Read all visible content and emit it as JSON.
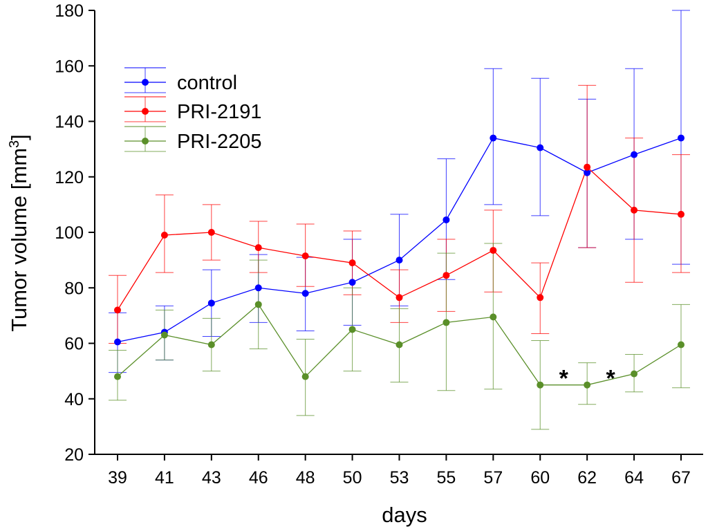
{
  "chart_data": {
    "type": "line",
    "title": "",
    "xlabel": "days",
    "ylabel_main": "Tumor volume [mm",
    "ylabel_sup": "3",
    "ylabel_end": "]",
    "ylim": [
      20,
      180
    ],
    "yticks": [
      20,
      40,
      60,
      80,
      100,
      120,
      140,
      160,
      180
    ],
    "categories": [
      "39",
      "41",
      "43",
      "46",
      "48",
      "50",
      "53",
      "55",
      "57",
      "60",
      "62",
      "64",
      "67"
    ],
    "legend_position": "top-left",
    "series": [
      {
        "name": "control",
        "color": "#0000ff",
        "values": [
          60.5,
          64,
          74.5,
          80,
          78,
          82,
          90,
          104.5,
          134,
          130.5,
          121.5,
          128,
          134
        ],
        "err_low": [
          49.5,
          54,
          62.5,
          67.5,
          64.5,
          66.5,
          73.5,
          83,
          110,
          106,
          94.5,
          97.5,
          88.5
        ],
        "err_high": [
          71,
          73.5,
          86.5,
          92,
          91,
          97.5,
          106.5,
          126.5,
          159,
          155.5,
          148,
          159,
          180
        ]
      },
      {
        "name": "PRI-2191",
        "color": "#ff0000",
        "values": [
          72,
          99,
          100,
          94.5,
          91.5,
          89,
          76.5,
          84.5,
          93.5,
          76.5,
          123.5,
          108,
          106.5
        ],
        "err_low": [
          60,
          85.5,
          90,
          85.5,
          80.5,
          77.5,
          67.5,
          71.5,
          78.5,
          63.5,
          94.5,
          82,
          85.5
        ],
        "err_high": [
          84.5,
          113.5,
          110,
          104,
          103,
          100.5,
          86.5,
          97.5,
          108,
          89,
          153,
          134,
          128
        ]
      },
      {
        "name": "PRI-2205",
        "color": "#5a8f29",
        "values": [
          48,
          63,
          59.5,
          74,
          48,
          65,
          59.5,
          67.5,
          69.5,
          45,
          45,
          49,
          59.5
        ],
        "err_low": [
          39.5,
          54,
          50,
          58,
          34,
          50,
          46,
          43,
          43.5,
          29,
          38,
          42.5,
          44
        ],
        "err_high": [
          57.5,
          72,
          69,
          90,
          61.5,
          80,
          72.5,
          92.5,
          96,
          61,
          53,
          56,
          74
        ]
      }
    ],
    "annotations": [
      {
        "text": "*",
        "x_between": [
          "60",
          "62"
        ],
        "y": 50
      },
      {
        "text": "*",
        "x_between": [
          "62",
          "64"
        ],
        "y": 50
      }
    ]
  }
}
